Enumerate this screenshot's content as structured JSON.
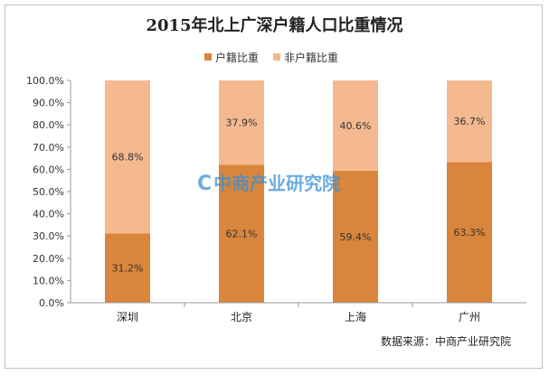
{
  "chart_data": {
    "type": "bar",
    "stacked": true,
    "title": "2015年北上广深户籍人口比重情况",
    "categories": [
      "深圳",
      "北京",
      "上海",
      "广州"
    ],
    "series": [
      {
        "name": "户籍比重",
        "values": [
          31.2,
          62.1,
          59.4,
          63.3
        ],
        "labels": [
          "31.2%",
          "62.1%",
          "59.4%",
          "63.3%"
        ],
        "color": "#d9853b"
      },
      {
        "name": "非户籍比重",
        "values": [
          68.8,
          37.9,
          40.6,
          36.7
        ],
        "labels": [
          "68.8%",
          "37.9%",
          "40.6%",
          "36.7%"
        ],
        "color": "#f5b98f"
      }
    ],
    "y_ticks": [
      "0.0%",
      "10.0%",
      "20.0%",
      "30.0%",
      "40.0%",
      "50.0%",
      "60.0%",
      "70.0%",
      "80.0%",
      "90.0%",
      "100.0%"
    ],
    "ylim": [
      0,
      100
    ],
    "legend_position": "top",
    "grid": false
  },
  "source": "数据来源：中商产业研究院",
  "watermark": "中商产业研究院"
}
